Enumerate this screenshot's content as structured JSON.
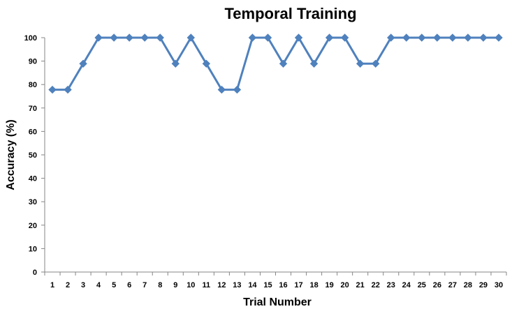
{
  "chart_data": {
    "type": "line",
    "title": "Temporal Training",
    "xlabel": "Trial Number",
    "ylabel": "Accuracy (%)",
    "ylim": [
      0,
      100
    ],
    "yticks": [
      0,
      10,
      20,
      30,
      40,
      50,
      60,
      70,
      80,
      90,
      100
    ],
    "grid": false,
    "legend": "none",
    "categories": [
      "1",
      "2",
      "3",
      "4",
      "5",
      "6",
      "7",
      "8",
      "9",
      "10",
      "11",
      "12",
      "13",
      "14",
      "15",
      "16",
      "17",
      "18",
      "19",
      "20",
      "21",
      "22",
      "23",
      "24",
      "25",
      "26",
      "27",
      "28",
      "29",
      "30"
    ],
    "series": [
      {
        "color": "#4f81bd",
        "values": [
          77.8,
          77.8,
          88.9,
          100,
          100,
          100,
          100,
          100,
          88.9,
          100,
          88.9,
          77.8,
          77.8,
          100,
          100,
          88.9,
          100,
          88.9,
          100,
          100,
          88.9,
          88.9,
          100,
          100,
          100,
          100,
          100,
          100,
          100,
          100
        ]
      }
    ]
  }
}
